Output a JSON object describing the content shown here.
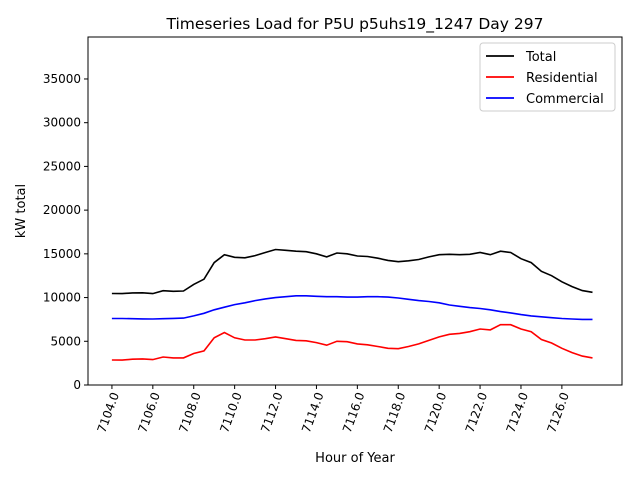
{
  "chart_data": {
    "type": "line",
    "title": "Timeseries Load for P5U p5uhs19_1247  Day 297",
    "xlabel": "Hour of Year",
    "ylabel": "kW total",
    "xlim": [
      7102.83,
      7128.94
    ],
    "ylim": [
      0,
      39800
    ],
    "xticks": [
      7104,
      7106,
      7108,
      7110,
      7112,
      7114,
      7116,
      7118,
      7120,
      7122,
      7124,
      7126
    ],
    "xtick_labels": [
      "7104.0",
      "7106.0",
      "7108.0",
      "7110.0",
      "7112.0",
      "7114.0",
      "7116.0",
      "7118.0",
      "7120.0",
      "7122.0",
      "7124.0",
      "7126.0"
    ],
    "yticks": [
      0,
      5000,
      10000,
      15000,
      20000,
      25000,
      30000,
      35000
    ],
    "ytick_labels": [
      "0",
      "5000",
      "10000",
      "15000",
      "20000",
      "25000",
      "30000",
      "35000"
    ],
    "grid": false,
    "legend_position": "top-right",
    "x_start": 7104,
    "x_step": 0.5,
    "series": [
      {
        "name": "Total",
        "color": "#000000",
        "values": [
          10460,
          10450,
          10530,
          10540,
          10450,
          10780,
          10720,
          10750,
          11500,
          12100,
          14000,
          14900,
          14600,
          14550,
          14800,
          15150,
          15500,
          15400,
          15300,
          15250,
          15000,
          14650,
          15100,
          15000,
          14750,
          14700,
          14500,
          14250,
          14100,
          14200,
          14350,
          14650,
          14900,
          14950,
          14900,
          14950,
          15150,
          14900,
          15300,
          15150,
          14450,
          14000,
          13000,
          12500,
          11800,
          11250,
          10800,
          10600
        ]
      },
      {
        "name": "Residential",
        "color": "#ff0000",
        "values": [
          2860,
          2850,
          2950,
          2980,
          2900,
          3200,
          3100,
          3100,
          3600,
          3900,
          5400,
          6000,
          5400,
          5150,
          5150,
          5300,
          5500,
          5300,
          5100,
          5050,
          4850,
          4550,
          5000,
          4950,
          4700,
          4600,
          4400,
          4200,
          4150,
          4400,
          4700,
          5100,
          5500,
          5800,
          5900,
          6100,
          6400,
          6300,
          6900,
          6900,
          6400,
          6100,
          5200,
          4800,
          4200,
          3700,
          3300,
          3100
        ]
      },
      {
        "name": "Commercial",
        "color": "#0000ff",
        "values": [
          7600,
          7600,
          7580,
          7560,
          7550,
          7580,
          7620,
          7650,
          7900,
          8200,
          8600,
          8900,
          9200,
          9400,
          9650,
          9850,
          10000,
          10100,
          10200,
          10200,
          10150,
          10100,
          10100,
          10050,
          10050,
          10100,
          10100,
          10050,
          9950,
          9800,
          9650,
          9550,
          9400,
          9150,
          9000,
          8850,
          8750,
          8600,
          8400,
          8250,
          8050,
          7900,
          7800,
          7700,
          7600,
          7550,
          7500,
          7500
        ]
      }
    ]
  }
}
